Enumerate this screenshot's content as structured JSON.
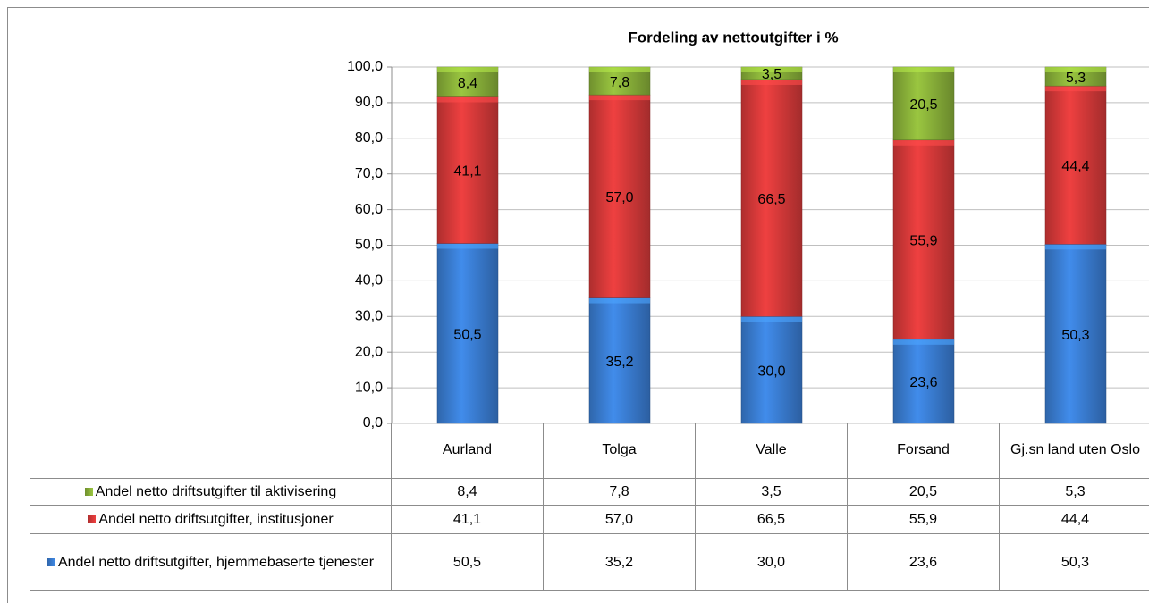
{
  "chart_data": {
    "type": "stacked_bar",
    "title": "Fordeling av nettoutgifter i %",
    "categories": [
      "Aurland",
      "Tolga",
      "Valle",
      "Forsand",
      "Gj.sn land uten Oslo"
    ],
    "series": [
      {
        "name": "Andel netto driftsutgifter til aktivisering",
        "color": "#8cb43a",
        "values": [
          8.4,
          7.8,
          3.5,
          20.5,
          5.3
        ],
        "value_labels": [
          "8,4",
          "7,8",
          "3,5",
          "20,5",
          "5,3"
        ]
      },
      {
        "name": "Andel netto driftsutgifter, institusjoner",
        "color": "#d93a3a",
        "values": [
          41.1,
          57.0,
          66.5,
          55.9,
          44.4
        ],
        "value_labels": [
          "41,1",
          "57,0",
          "66,5",
          "55,9",
          "44,4"
        ]
      },
      {
        "name": "Andel netto driftsutgifter, hjemmebaserte tjenester",
        "color": "#3b7fd6",
        "values": [
          50.5,
          35.2,
          30.0,
          23.6,
          50.3
        ],
        "value_labels": [
          "50,5",
          "35,2",
          "30,0",
          "23,6",
          "50,3"
        ]
      }
    ],
    "ylim": [
      0,
      100
    ],
    "yticks": [
      {
        "value": 0,
        "label": "0,0"
      },
      {
        "value": 10,
        "label": "10,0"
      },
      {
        "value": 20,
        "label": "20,0"
      },
      {
        "value": 30,
        "label": "30,0"
      },
      {
        "value": 40,
        "label": "40,0"
      },
      {
        "value": 50,
        "label": "50,0"
      },
      {
        "value": 60,
        "label": "60,0"
      },
      {
        "value": 70,
        "label": "70,0"
      },
      {
        "value": 80,
        "label": "80,0"
      },
      {
        "value": 90,
        "label": "90,0"
      },
      {
        "value": 100,
        "label": "100,0"
      }
    ],
    "grid": true
  }
}
